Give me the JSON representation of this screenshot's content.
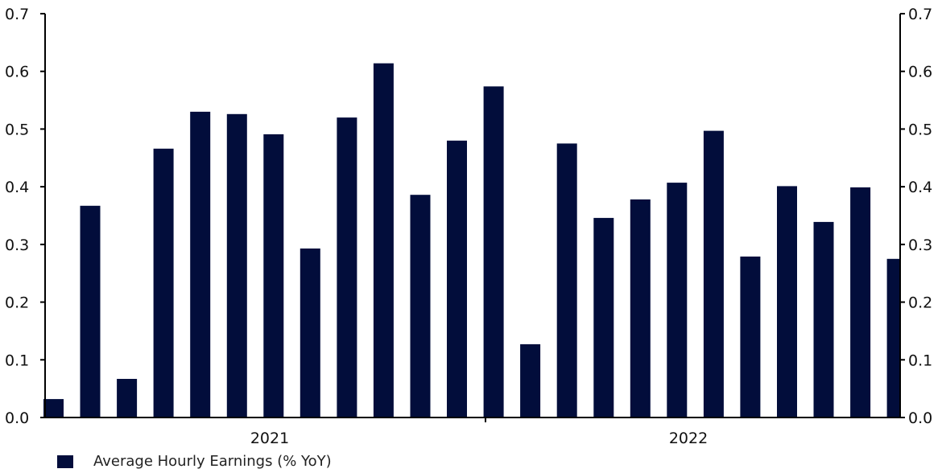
{
  "chart_data": {
    "type": "bar",
    "title": "",
    "xlabel": "",
    "ylabel": "",
    "ylim": [
      0,
      0.7
    ],
    "yticks": [
      "0.0",
      "0.1",
      "0.2",
      "0.3",
      "0.4",
      "0.5",
      "0.6",
      "0.7"
    ],
    "y2ticks": [
      "0.0",
      "0.1",
      "0.2",
      "0.3",
      "0.4",
      "0.5",
      "0.6",
      "0.7"
    ],
    "year_labels": [
      "2021",
      "2022"
    ],
    "series": [
      {
        "name": "Average Hourly Earnings (% YoY)",
        "color": "#020d3b",
        "values": [
          0.032,
          0.367,
          0.067,
          0.466,
          0.53,
          0.526,
          0.491,
          0.293,
          0.52,
          0.614,
          0.386,
          0.48,
          0.574,
          0.127,
          0.475,
          0.346,
          0.378,
          0.407,
          0.497,
          0.279,
          0.401,
          0.339,
          0.399,
          0.275
        ]
      }
    ],
    "grid": false,
    "legend_position": "bottom-left"
  }
}
